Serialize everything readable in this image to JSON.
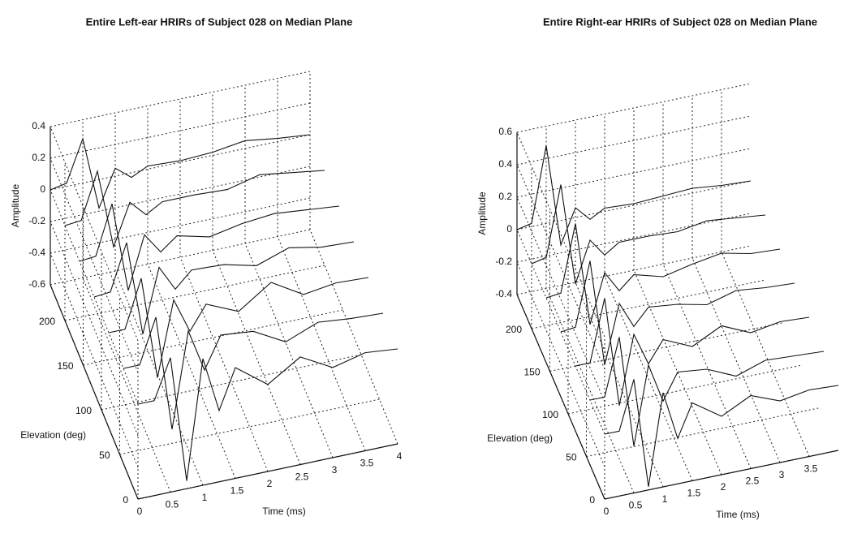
{
  "chart_data": [
    {
      "type": "waterfall",
      "title": "Entire Left-ear HRIRs of Subject 028 on Median Plane",
      "xlabel": "Time (ms)",
      "ylabel": "Elevation (deg)",
      "zlabel": "Amplitude",
      "x": [
        0,
        0.25,
        0.5,
        0.75,
        1,
        1.25,
        1.5,
        2,
        2.5,
        3,
        3.5,
        4
      ],
      "elevations": [
        240,
        200,
        160,
        120,
        80,
        40,
        0
      ],
      "values": [
        [
          0,
          0.02,
          0.28,
          -0.18,
          0.05,
          -0.03,
          0.02,
          0.01,
          0.02,
          0.05,
          0.02,
          0
        ],
        [
          0,
          0.01,
          0.3,
          -0.2,
          0.06,
          -0.04,
          0.02,
          0.02,
          0.01,
          0.06,
          0.03,
          0
        ],
        [
          0,
          0.01,
          0.32,
          -0.25,
          0.08,
          -0.05,
          0.03,
          -0.02,
          0.02,
          0.04,
          0.02,
          0
        ],
        [
          0,
          0.01,
          0.3,
          -0.3,
          0.1,
          -0.06,
          0.04,
          0.03,
          -0.02,
          0.05,
          0.01,
          0
        ],
        [
          0,
          0,
          0.3,
          -0.35,
          0.12,
          -0.1,
          0.05,
          -0.04,
          0.1,
          -0.02,
          0.01,
          0
        ],
        [
          0,
          0,
          0.28,
          -0.45,
          0.15,
          -0.12,
          0.08,
          0.06,
          -0.05,
          0.03,
          0.01,
          0
        ],
        [
          0,
          0,
          0.25,
          -0.55,
          0.2,
          -0.15,
          0.1,
          -0.05,
          0.08,
          -0.03,
          0.02,
          0
        ]
      ],
      "xlim": [
        0,
        4
      ],
      "ylim": [
        0,
        240
      ],
      "zlim": [
        -0.6,
        0.4
      ],
      "xticks": [
        0,
        0.5,
        1,
        1.5,
        2,
        2.5,
        3,
        3.5,
        4
      ],
      "yticks": [
        0,
        50,
        100,
        150,
        200
      ],
      "zticks": [
        -0.6,
        -0.4,
        -0.2,
        0,
        0.2,
        0.4
      ],
      "grid": true,
      "color": "#111111"
    },
    {
      "type": "waterfall",
      "title": "Entire Right-ear HRIRs of Subject 028 on Median Plane",
      "xlabel": "Time (ms)",
      "ylabel": "Elevation (deg)",
      "zlabel": "Amplitude",
      "x": [
        0,
        0.25,
        0.5,
        0.75,
        1,
        1.25,
        1.5,
        2,
        2.5,
        3,
        3.5,
        4
      ],
      "elevations": [
        240,
        200,
        160,
        120,
        80,
        40,
        0
      ],
      "values": [
        [
          0,
          0.02,
          0.48,
          -0.15,
          0.06,
          -0.03,
          0.02,
          0.01,
          0.02,
          0.03,
          0.01,
          0
        ],
        [
          0,
          0.02,
          0.45,
          -0.18,
          0.07,
          -0.04,
          0.02,
          0.02,
          0.01,
          0.04,
          0.02,
          0
        ],
        [
          0,
          0.01,
          0.42,
          -0.22,
          0.08,
          -0.05,
          0.03,
          -0.02,
          0.02,
          0.05,
          0.01,
          0
        ],
        [
          0,
          0.01,
          0.4,
          -0.26,
          0.1,
          -0.06,
          0.04,
          0.02,
          -0.02,
          0.03,
          0.01,
          0
        ],
        [
          0,
          0,
          0.38,
          -0.3,
          0.12,
          -0.08,
          0.05,
          -0.03,
          0.06,
          -0.02,
          0.01,
          0
        ],
        [
          0,
          0,
          0.35,
          -0.34,
          0.14,
          -0.1,
          0.06,
          0.04,
          -0.04,
          0.02,
          0.01,
          0
        ],
        [
          0,
          0,
          0.3,
          -0.38,
          0.18,
          -0.12,
          0.08,
          -0.04,
          0.05,
          -0.02,
          0.01,
          0
        ]
      ],
      "xlim": [
        0,
        4
      ],
      "ylim": [
        0,
        240
      ],
      "zlim": [
        -0.4,
        0.6
      ],
      "xticks": [
        0,
        0.5,
        1,
        1.5,
        2,
        2.5,
        3,
        3.5
      ],
      "yticks": [
        0,
        50,
        100,
        150,
        200
      ],
      "zticks": [
        -0.4,
        -0.2,
        0,
        0.2,
        0.4,
        0.6
      ],
      "grid": true,
      "color": "#111111"
    }
  ]
}
